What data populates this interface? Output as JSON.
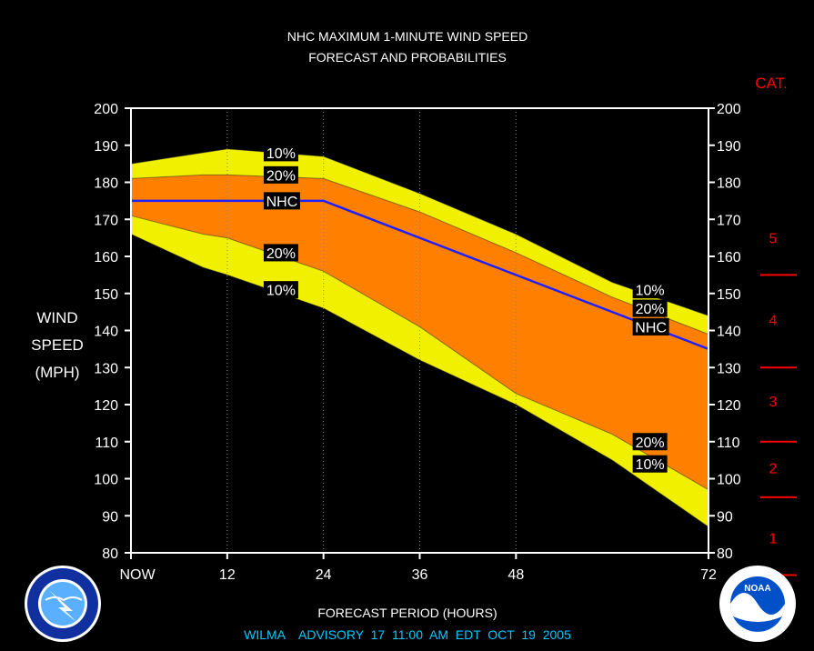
{
  "header": {
    "title_line1": "NHC MAXIMUM 1-MINUTE WIND SPEED",
    "title_line2": "FORECAST AND PROBABILITIES"
  },
  "footer": {
    "xlabel": "FORECAST PERIOD (HOURS)",
    "advisory": "WILMA    ADVISORY  17  11:00  AM  EDT  OCT  19  2005"
  },
  "colors": {
    "background": "#000000",
    "band_10": "#f0f000",
    "band_20": "#ff8000",
    "nhc_line": "#2020ff",
    "category": "#ff0000",
    "advisory_text": "#00c8ff",
    "text": "#ffffff"
  },
  "logos": {
    "nws": "National Weather Service",
    "noaa": "NOAA"
  },
  "chart_data": {
    "type": "area",
    "title": "NHC MAXIMUM 1-MINUTE WIND SPEED FORECAST AND PROBABILITIES",
    "ylabel_lines": [
      "WIND",
      "SPEED",
      "(MPH)"
    ],
    "xlabel": "FORECAST PERIOD (HOURS)",
    "ylim": [
      80,
      200
    ],
    "xlim": [
      0,
      72
    ],
    "y_ticks": [
      80,
      90,
      100,
      110,
      120,
      130,
      140,
      150,
      160,
      170,
      180,
      190,
      200
    ],
    "x_ticks": [
      {
        "x": 0,
        "label": "NOW"
      },
      {
        "x": 12,
        "label": "12"
      },
      {
        "x": 24,
        "label": "24"
      },
      {
        "x": 36,
        "label": "36"
      },
      {
        "x": 48,
        "label": "48"
      },
      {
        "x": 72,
        "label": "72"
      }
    ],
    "grid_x": [
      12,
      24,
      36,
      48
    ],
    "x": [
      0,
      9,
      12,
      24,
      36,
      48,
      60,
      72
    ],
    "series": [
      {
        "name": "10%",
        "values": [
          185,
          188,
          189,
          187,
          177,
          166,
          153,
          144
        ]
      },
      {
        "name": "20%",
        "values": [
          181,
          182,
          182,
          181,
          172,
          161,
          149,
          139
        ]
      },
      {
        "name": "NHC",
        "values": [
          175,
          175,
          175,
          175,
          165,
          155,
          145,
          135
        ]
      },
      {
        "name": "20%",
        "values": [
          171,
          166,
          165,
          156,
          141,
          123,
          112,
          97
        ]
      },
      {
        "name": "10%",
        "values": [
          166,
          157,
          155,
          146,
          132,
          120,
          105,
          87
        ]
      }
    ],
    "labels": [
      {
        "text": "10%",
        "x": 17,
        "y": 188
      },
      {
        "text": "20%",
        "x": 17,
        "y": 182
      },
      {
        "text": "NHC",
        "x": 17,
        "y": 175
      },
      {
        "text": "20%",
        "x": 17,
        "y": 161
      },
      {
        "text": "10%",
        "x": 17,
        "y": 151
      },
      {
        "text": "10%",
        "x": 63,
        "y": 151
      },
      {
        "text": "20%",
        "x": 63,
        "y": 146
      },
      {
        "text": "NHC",
        "x": 63,
        "y": 141
      },
      {
        "text": "20%",
        "x": 63,
        "y": 110
      },
      {
        "text": "10%",
        "x": 63,
        "y": 104
      }
    ],
    "categories_title": "CAT.",
    "categories": [
      {
        "label": "5",
        "y": 165
      },
      {
        "label": "4",
        "y": 143
      },
      {
        "label": "3",
        "y": 121
      },
      {
        "label": "2",
        "y": 103
      },
      {
        "label": "1",
        "y": 84
      }
    ],
    "category_boundaries": [
      155,
      130,
      110,
      95,
      74
    ]
  }
}
